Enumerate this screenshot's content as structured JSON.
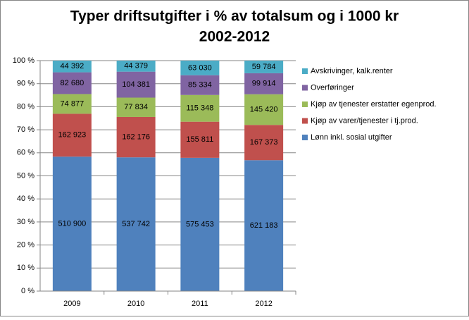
{
  "chart_data": {
    "type": "bar",
    "stacking": "percent",
    "title": "Typer driftsutgifter i % av totalsum og i 1000 kr",
    "subtitle": "2002-2012",
    "categories": [
      "2009",
      "2010",
      "2011",
      "2012"
    ],
    "series": [
      {
        "name": "Lønn inkl. sosial utgifter",
        "color": "#4f81bd",
        "values": [
          510900,
          537742,
          575453,
          621183
        ],
        "value_labels": [
          "510 900",
          "537 742",
          "575 453",
          "621 183"
        ]
      },
      {
        "name": "Kjøp av varer/tjenester i tj.prod.",
        "color": "#c0504d",
        "values": [
          162923,
          162176,
          155811,
          167373
        ],
        "value_labels": [
          "162 923",
          "162 176",
          "155 811",
          "167 373"
        ]
      },
      {
        "name": "Kjøp av tjenester erstatter egenprod.",
        "color": "#9bbb59",
        "values": [
          74877,
          77834,
          115348,
          145420
        ],
        "value_labels": [
          "74 877",
          "77 834",
          "115 348",
          "145 420"
        ]
      },
      {
        "name": "Overføringer",
        "color": "#8064a2",
        "values": [
          82680,
          104381,
          85334,
          99914
        ],
        "value_labels": [
          "82 680",
          "104 381",
          "85 334",
          "99 914"
        ]
      },
      {
        "name": "Avskrivinger, kalk.renter",
        "color": "#4bacc6",
        "values": [
          44392,
          44379,
          63030,
          59784
        ],
        "value_labels": [
          "44 392",
          "44 379",
          "63 030",
          "59 784"
        ]
      }
    ],
    "ylim": [
      0,
      100
    ],
    "yticks": [
      {
        "value": 0,
        "label": "0 %"
      },
      {
        "value": 10,
        "label": "10 %"
      },
      {
        "value": 20,
        "label": "20 %"
      },
      {
        "value": 30,
        "label": "30 %"
      },
      {
        "value": 40,
        "label": "40 %"
      },
      {
        "value": 50,
        "label": "50 %"
      },
      {
        "value": 60,
        "label": "60 %"
      },
      {
        "value": 70,
        "label": "70 %"
      },
      {
        "value": 80,
        "label": "80 %"
      },
      {
        "value": 90,
        "label": "90 %"
      },
      {
        "value": 100,
        "label": "100 %"
      }
    ],
    "grid": true,
    "legend": "right"
  }
}
